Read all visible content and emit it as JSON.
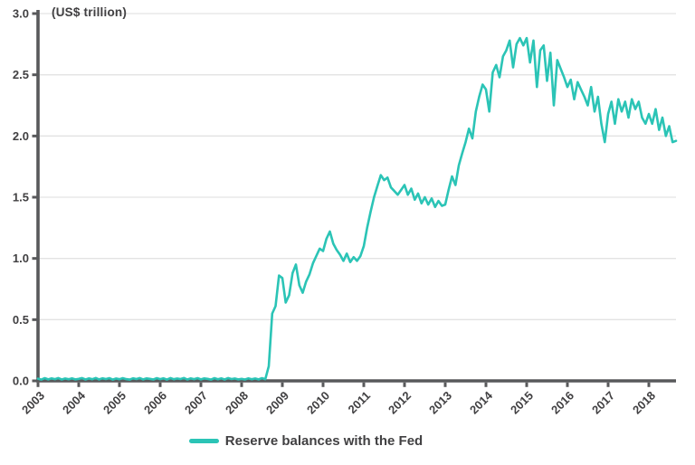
{
  "chart_data": {
    "type": "line",
    "unit_label": "(US$ trillion)",
    "grid": "horizontal",
    "colors": {
      "line": "#2bc4b6",
      "axis": "#58595b",
      "grid": "#e3e3e3",
      "text": "#414042",
      "background": "#ffffff"
    },
    "x_axis": {
      "tick_labels": [
        "2003",
        "2004",
        "2005",
        "2006",
        "2007",
        "2008",
        "2009",
        "2010",
        "2011",
        "2012",
        "2013",
        "2014",
        "2015",
        "2016",
        "2017",
        "2018"
      ],
      "range": [
        2003,
        2018.67
      ],
      "label_rotation_deg": -45
    },
    "y_axis": {
      "tick_values": [
        0,
        0.5,
        1,
        1.5,
        2,
        2.5,
        3
      ],
      "tick_labels": [
        "0.0",
        "0.5",
        "1.0",
        "1.5",
        "2.0",
        "2.5",
        "3.0"
      ],
      "range": [
        0,
        3
      ]
    },
    "legend": {
      "position": "bottom",
      "items": [
        {
          "label": "Reserve balances with the Fed",
          "color": "#2bc4b6"
        }
      ]
    },
    "series": [
      {
        "name": "Reserve balances with the Fed",
        "color": "#2bc4b6",
        "start_year": 2003,
        "points_per_year": 12,
        "values": [
          0.018,
          0.01,
          0.022,
          0.012,
          0.02,
          0.014,
          0.023,
          0.011,
          0.019,
          0.013,
          0.021,
          0.012,
          0.016,
          0.023,
          0.011,
          0.02,
          0.013,
          0.024,
          0.012,
          0.021,
          0.015,
          0.022,
          0.01,
          0.019,
          0.013,
          0.022,
          0.014,
          0.01,
          0.021,
          0.015,
          0.023,
          0.012,
          0.02,
          0.016,
          0.011,
          0.022,
          0.014,
          0.021,
          0.01,
          0.023,
          0.013,
          0.019,
          0.015,
          0.024,
          0.011,
          0.02,
          0.014,
          0.022,
          0.012,
          0.02,
          0.016,
          0.01,
          0.022,
          0.013,
          0.021,
          0.011,
          0.023,
          0.015,
          0.019,
          0.012,
          0.016,
          0.011,
          0.021,
          0.013,
          0.019,
          0.012,
          0.022,
          0.014,
          0.12,
          0.55,
          0.61,
          0.86,
          0.84,
          0.64,
          0.7,
          0.88,
          0.95,
          0.78,
          0.72,
          0.81,
          0.87,
          0.96,
          1.02,
          1.08,
          1.06,
          1.16,
          1.22,
          1.12,
          1.07,
          1.03,
          0.98,
          1.04,
          0.97,
          1.01,
          0.98,
          1.02,
          1.1,
          1.25,
          1.38,
          1.5,
          1.59,
          1.68,
          1.64,
          1.66,
          1.58,
          1.55,
          1.52,
          1.56,
          1.6,
          1.52,
          1.57,
          1.48,
          1.53,
          1.45,
          1.5,
          1.44,
          1.49,
          1.42,
          1.47,
          1.43,
          1.44,
          1.56,
          1.67,
          1.6,
          1.76,
          1.86,
          1.95,
          2.06,
          1.98,
          2.2,
          2.32,
          2.42,
          2.38,
          2.2,
          2.52,
          2.58,
          2.48,
          2.65,
          2.7,
          2.78,
          2.56,
          2.75,
          2.8,
          2.74,
          2.8,
          2.6,
          2.78,
          2.4,
          2.7,
          2.74,
          2.45,
          2.68,
          2.25,
          2.62,
          2.55,
          2.48,
          2.4,
          2.46,
          2.3,
          2.44,
          2.38,
          2.32,
          2.25,
          2.4,
          2.2,
          2.32,
          2.1,
          1.95,
          2.18,
          2.28,
          2.1,
          2.3,
          2.2,
          2.28,
          2.15,
          2.3,
          2.22,
          2.28,
          2.15,
          2.1,
          2.18,
          2.1,
          2.22,
          2.05,
          2.15,
          2.0,
          2.08,
          1.95,
          1.96
        ]
      }
    ]
  }
}
